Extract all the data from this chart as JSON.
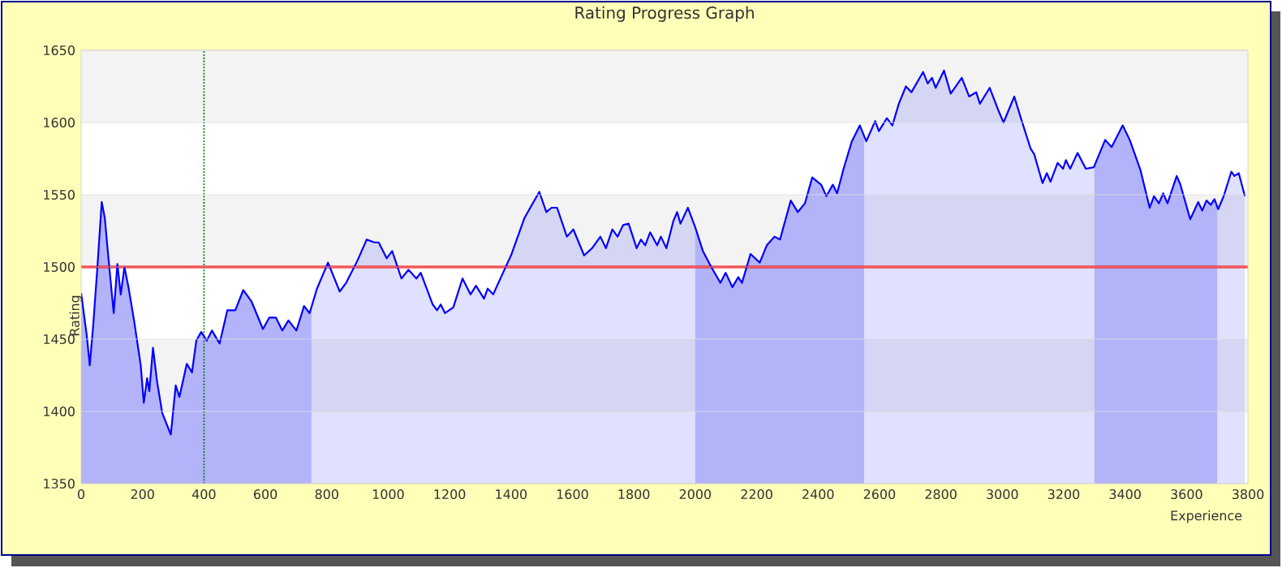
{
  "chart_data": {
    "type": "area",
    "title": "Rating Progress Graph",
    "xlabel": "Experience",
    "ylabel": "Rating",
    "x": [
      0,
      18,
      28,
      39,
      53,
      67,
      77,
      88,
      106,
      118,
      129,
      141,
      155,
      173,
      194,
      204,
      215,
      222,
      234,
      247,
      264,
      292,
      308,
      320,
      344,
      361,
      375,
      391,
      409,
      426,
      451,
      476,
      502,
      528,
      555,
      592,
      613,
      634,
      655,
      675,
      701,
      726,
      744,
      768,
      804,
      842,
      863,
      899,
      930,
      955,
      969,
      995,
      1013,
      1043,
      1066,
      1092,
      1106,
      1145,
      1159,
      1171,
      1185,
      1212,
      1242,
      1268,
      1286,
      1312,
      1324,
      1342,
      1374,
      1400,
      1444,
      1492,
      1515,
      1532,
      1550,
      1582,
      1603,
      1638,
      1664,
      1691,
      1709,
      1730,
      1747,
      1765,
      1783,
      1809,
      1823,
      1837,
      1853,
      1876,
      1888,
      1906,
      1929,
      1941,
      1952,
      1976,
      1999,
      2025,
      2052,
      2082,
      2099,
      2121,
      2140,
      2152,
      2180,
      2210,
      2233,
      2258,
      2276,
      2311,
      2334,
      2357,
      2381,
      2410,
      2427,
      2448,
      2462,
      2483,
      2510,
      2536,
      2557,
      2586,
      2598,
      2624,
      2642,
      2663,
      2686,
      2704,
      2742,
      2757,
      2771,
      2783,
      2810,
      2832,
      2868,
      2892,
      2915,
      2927,
      2959,
      2986,
      3004,
      3039,
      3062,
      3092,
      3104,
      3131,
      3145,
      3157,
      3180,
      3198,
      3207,
      3221,
      3245,
      3272,
      3298,
      3335,
      3356,
      3392,
      3415,
      3450,
      3480,
      3494,
      3510,
      3524,
      3538,
      3568,
      3580,
      3612,
      3638,
      3651,
      3665,
      3679,
      3691,
      3703,
      3721,
      3746,
      3756,
      3770,
      3790
    ],
    "series": [
      {
        "color": "#0000ff",
        "values": [
          1482,
          1453,
          1432,
          1459,
          1500,
          1545,
          1534,
          1508,
          1468,
          1502,
          1481,
          1500,
          1485,
          1462,
          1432,
          1406,
          1423,
          1414,
          1444,
          1421,
          1399,
          1384,
          1418,
          1410,
          1433,
          1427,
          1449,
          1455,
          1449,
          1456,
          1447,
          1470,
          1470,
          1484,
          1476,
          1457,
          1465,
          1465,
          1456,
          1463,
          1456,
          1473,
          1468,
          1485,
          1503,
          1483,
          1489,
          1504,
          1519,
          1517,
          1517,
          1506,
          1511,
          1492,
          1498,
          1492,
          1496,
          1474,
          1470,
          1474,
          1468,
          1472,
          1492,
          1481,
          1487,
          1478,
          1485,
          1481,
          1496,
          1508,
          1534,
          1552,
          1538,
          1541,
          1541,
          1521,
          1526,
          1508,
          1513,
          1521,
          1513,
          1526,
          1521,
          1529,
          1530,
          1513,
          1519,
          1515,
          1524,
          1515,
          1521,
          1513,
          1532,
          1538,
          1530,
          1541,
          1528,
          1511,
          1500,
          1489,
          1496,
          1486,
          1493,
          1489,
          1509,
          1503,
          1515,
          1521,
          1519,
          1546,
          1538,
          1544,
          1562,
          1557,
          1549,
          1557,
          1551,
          1568,
          1587,
          1598,
          1587,
          1601,
          1594,
          1603,
          1598,
          1613,
          1625,
          1621,
          1635,
          1627,
          1631,
          1624,
          1636,
          1620,
          1631,
          1618,
          1621,
          1613,
          1624,
          1609,
          1600,
          1618,
          1602,
          1582,
          1578,
          1558,
          1565,
          1559,
          1572,
          1568,
          1574,
          1568,
          1579,
          1568,
          1569,
          1588,
          1583,
          1598,
          1588,
          1567,
          1541,
          1549,
          1544,
          1551,
          1544,
          1563,
          1557,
          1533,
          1545,
          1539,
          1546,
          1543,
          1547,
          1540,
          1549,
          1566,
          1563,
          1565,
          1549
        ]
      }
    ],
    "xlim": [
      0,
      3800
    ],
    "ylim": [
      1350,
      1650
    ],
    "xticks": [
      0,
      200,
      400,
      600,
      800,
      1000,
      1200,
      1400,
      1600,
      1800,
      2000,
      2200,
      2400,
      2600,
      2800,
      3000,
      3200,
      3400,
      3600,
      3800
    ],
    "yticks": [
      1350,
      1400,
      1450,
      1500,
      1550,
      1600,
      1650
    ],
    "grid": "y",
    "ref_lines": [
      {
        "axis": "y",
        "value": 1500,
        "color": "#ff0000",
        "line_style": "solid"
      },
      {
        "axis": "x",
        "value": 400,
        "color": "#007700",
        "line_style": "dotted"
      }
    ],
    "bands": [
      {
        "axis": "x",
        "from": 0,
        "to": 750,
        "color": "#ccccfa"
      },
      {
        "axis": "x",
        "from": 2000,
        "to": 2550,
        "color": "#ccccfa"
      },
      {
        "axis": "x",
        "from": 3300,
        "to": 3700,
        "color": "#ccccfa"
      }
    ]
  }
}
